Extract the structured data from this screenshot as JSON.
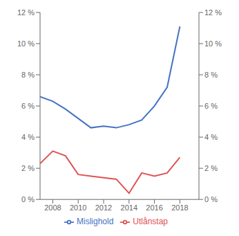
{
  "chart_data": {
    "type": "line",
    "x": [
      2007,
      2008,
      2009,
      2010,
      2011,
      2012,
      2013,
      2014,
      2015,
      2016,
      2017,
      2018,
      2019
    ],
    "series": [
      {
        "name": "Mislighold",
        "color": "#4472C4",
        "values": [
          6.6,
          6.3,
          5.8,
          5.2,
          4.6,
          4.7,
          4.6,
          4.8,
          5.1,
          6.0,
          7.2,
          11.1,
          null
        ]
      },
      {
        "name": "Utlånstap",
        "color": "#E05252",
        "values": [
          2.3,
          3.1,
          2.8,
          1.6,
          1.5,
          1.4,
          1.3,
          0.4,
          1.7,
          1.5,
          1.7,
          2.7,
          null
        ]
      }
    ],
    "xlim": [
      2007.0,
      2019.5
    ],
    "xticks": [
      2008,
      2010,
      2012,
      2014,
      2016,
      2018
    ],
    "ylim": [
      0,
      12
    ],
    "yticks": [
      {
        "value": 0,
        "label": "0 %"
      },
      {
        "value": 2,
        "label": "2 %"
      },
      {
        "value": 4,
        "label": "4 %"
      },
      {
        "value": 6,
        "label": "6 %"
      },
      {
        "value": 8,
        "label": "8 %"
      },
      {
        "value": 10,
        "label": "10 %"
      },
      {
        "value": 12,
        "label": "12 %"
      }
    ],
    "y2lim": [
      0,
      12
    ],
    "y2ticks": [
      {
        "value": 0,
        "label": "0 %"
      },
      {
        "value": 2,
        "label": "2 %"
      },
      {
        "value": 4,
        "label": "4 %"
      },
      {
        "value": 6,
        "label": "6 %"
      },
      {
        "value": 8,
        "label": "8 %"
      },
      {
        "value": 10,
        "label": "10 %"
      },
      {
        "value": 12,
        "label": "12 %"
      }
    ],
    "grid": false,
    "legend": "bottom"
  }
}
